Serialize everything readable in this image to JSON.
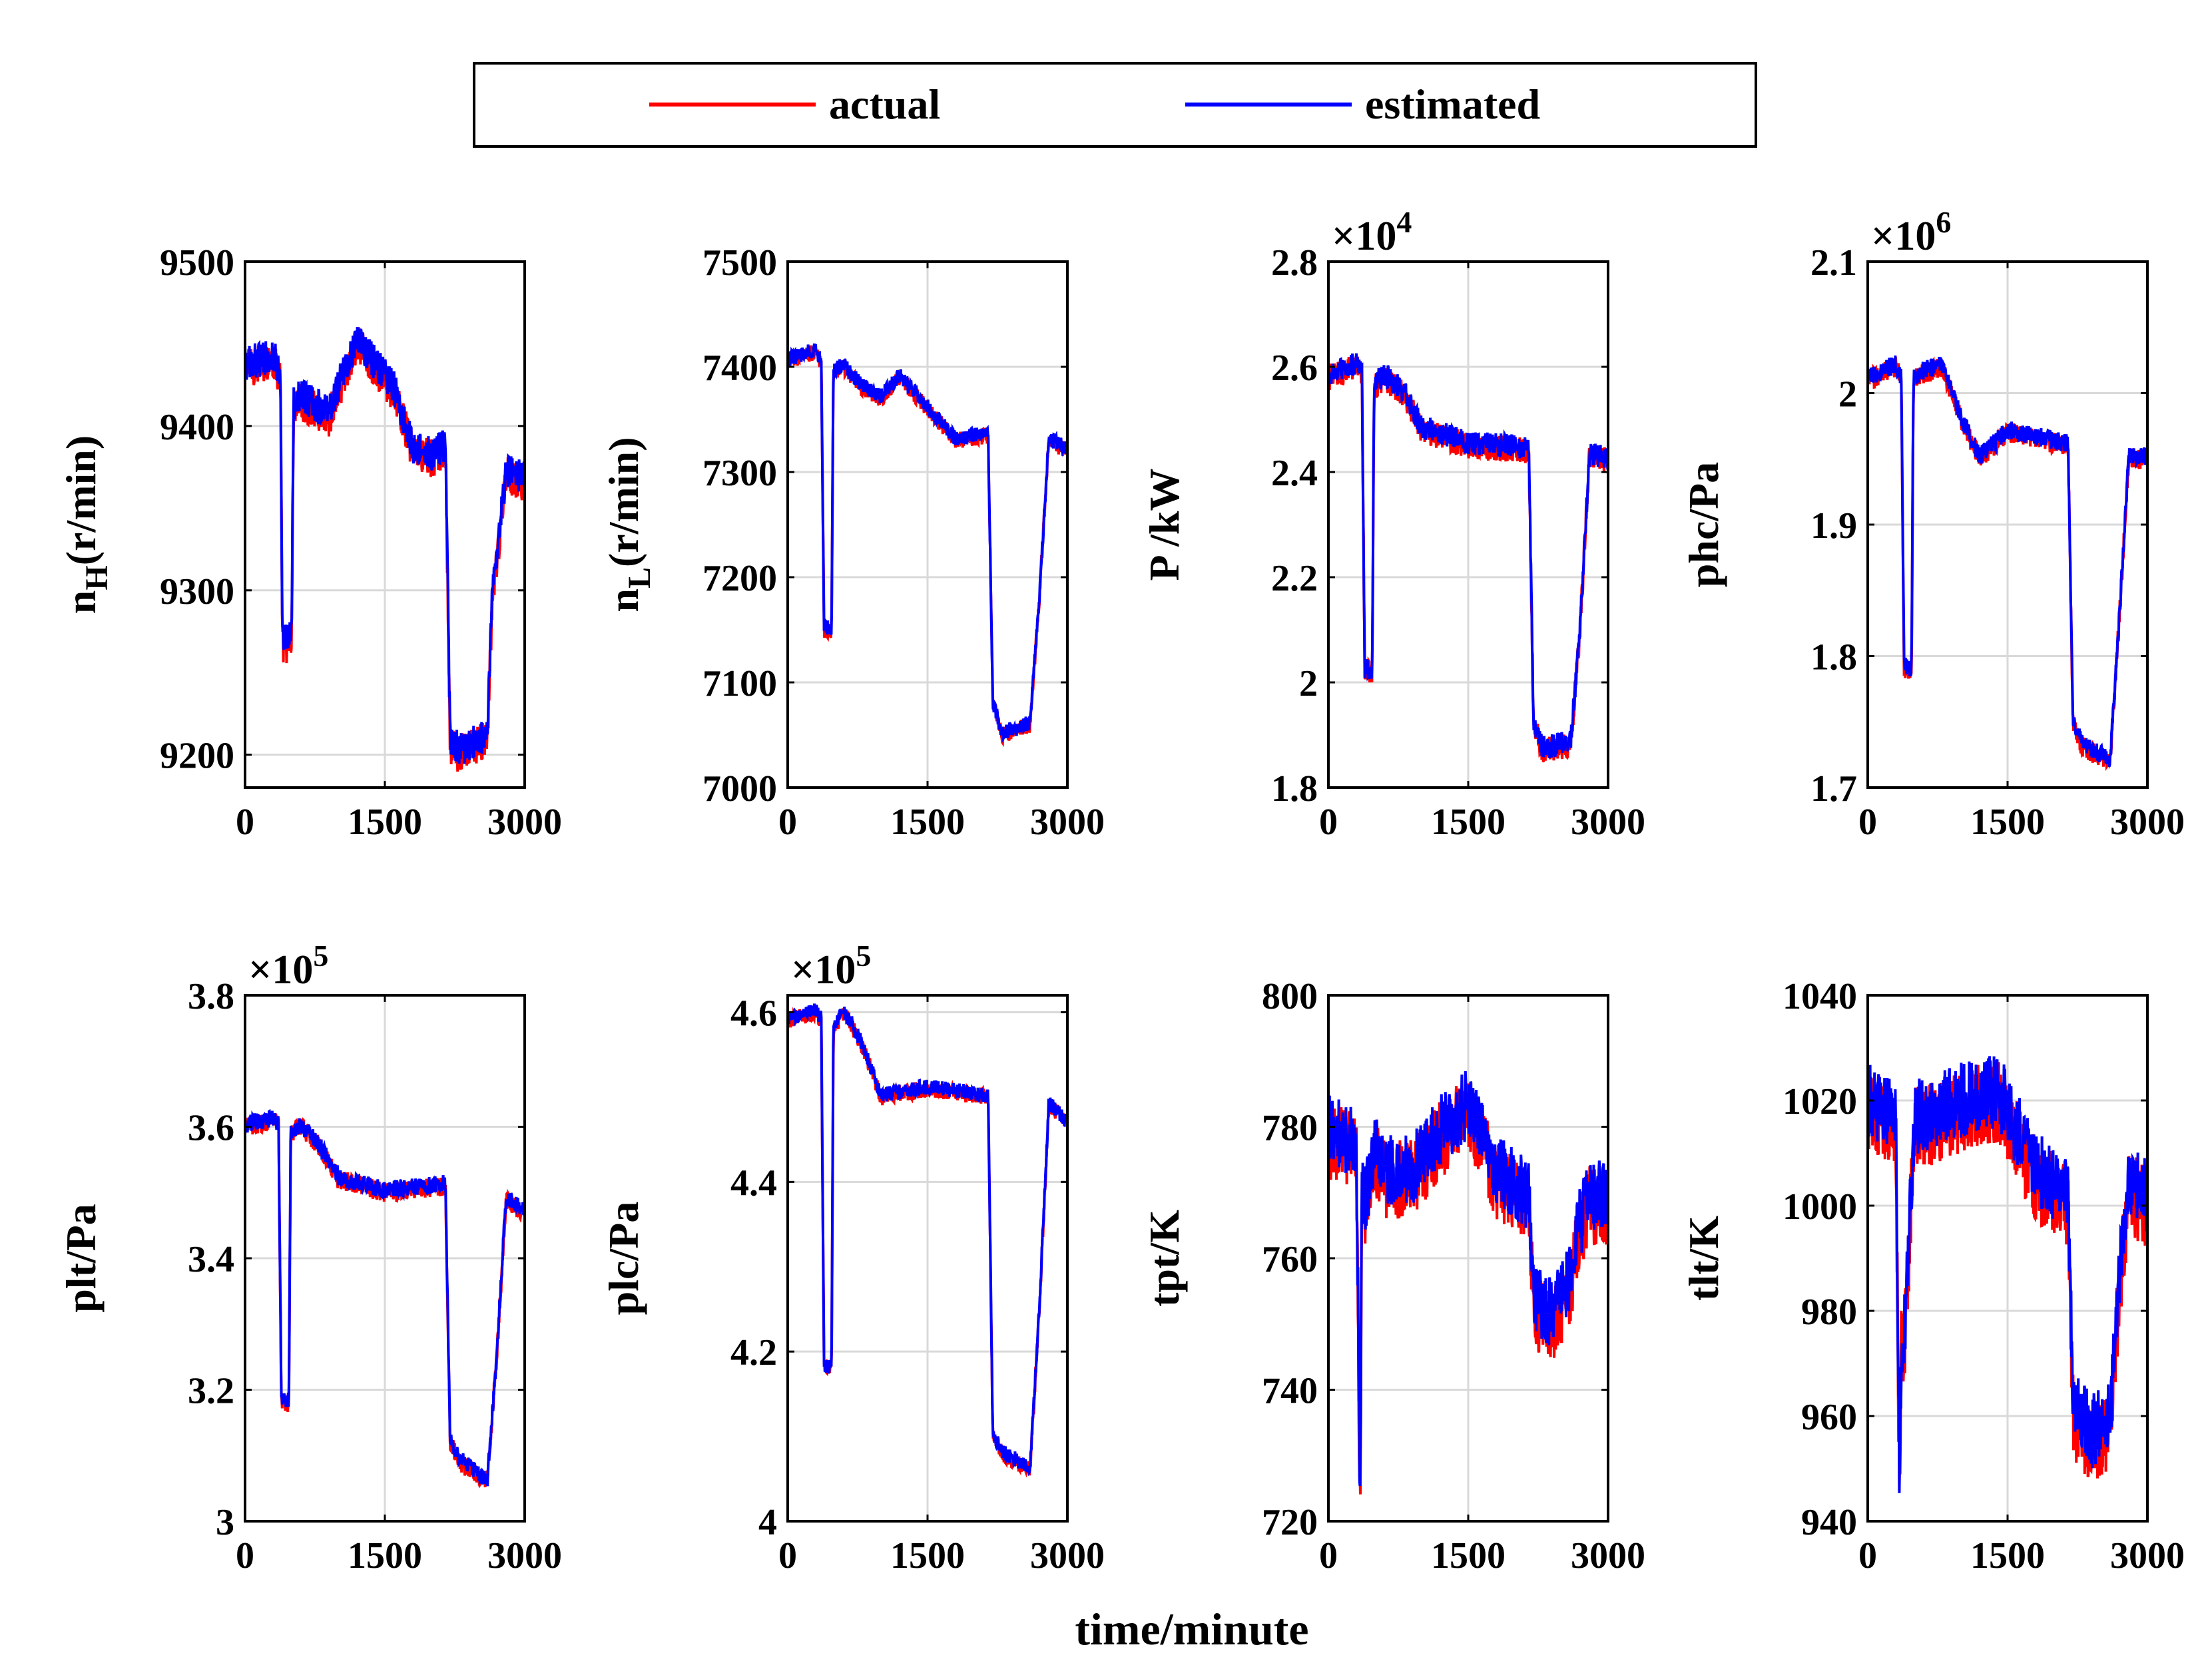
{
  "chart_data": {
    "type": "line",
    "xlabel": "time/minute",
    "legend": {
      "placement": "top-center",
      "entries": [
        {
          "label": "actual",
          "color": "#ff0000"
        },
        {
          "label": "estimated",
          "color": "#0000ff"
        }
      ]
    },
    "x_range": [
      0,
      3000
    ],
    "x_ticks": [
      "0",
      "1500",
      "3000"
    ],
    "grid": true,
    "panels": [
      {
        "id": "nH",
        "ylabel": "n",
        "ylabel_sub": "H",
        "ylabel_suffix": "(r/min)",
        "ylim": [
          9180,
          9500
        ],
        "yticks": [
          "9200",
          "9300",
          "9400",
          "9500"
        ],
        "exponent": "",
        "noise": 12,
        "x": [
          0,
          300,
          380,
          400,
          500,
          520,
          600,
          900,
          1200,
          1600,
          1800,
          2000,
          2150,
          2200,
          2300,
          2600,
          2650,
          2800,
          3000
        ],
        "y": [
          9435,
          9440,
          9430,
          9265,
          9270,
          9410,
          9415,
          9405,
          9450,
          9420,
          9385,
          9380,
          9385,
          9205,
          9200,
          9210,
          9290,
          9370,
          9365
        ]
      },
      {
        "id": "nL",
        "ylabel": "n",
        "ylabel_sub": "L",
        "ylabel_suffix": "(r/min)",
        "ylim": [
          7000,
          7500
        ],
        "yticks": [
          "7000",
          "7100",
          "7200",
          "7300",
          "7400",
          "7500"
        ],
        "exponent": "",
        "noise": 8,
        "x": [
          0,
          300,
          360,
          390,
          470,
          490,
          600,
          800,
          1000,
          1200,
          1600,
          1800,
          2150,
          2200,
          2300,
          2600,
          2700,
          2800,
          3000
        ],
        "y": [
          7405,
          7415,
          7400,
          7150,
          7150,
          7395,
          7400,
          7380,
          7370,
          7390,
          7350,
          7330,
          7335,
          7080,
          7050,
          7060,
          7180,
          7330,
          7320
        ]
      },
      {
        "id": "P",
        "ylabel": "P /kW",
        "ylabel_sub": "",
        "ylabel_suffix": "",
        "ylim": [
          1.8,
          2.8
        ],
        "yticks": [
          "1.8",
          "2",
          "2.2",
          "2.4",
          "2.6",
          "2.8"
        ],
        "exponent": "×10^4",
        "noise": 0.025,
        "x": [
          0,
          300,
          360,
          390,
          470,
          490,
          600,
          800,
          1000,
          1500,
          2150,
          2200,
          2300,
          2600,
          2700,
          2800,
          3000
        ],
        "y": [
          2.58,
          2.6,
          2.58,
          2.02,
          2.02,
          2.56,
          2.58,
          2.55,
          2.48,
          2.45,
          2.44,
          1.92,
          1.87,
          1.88,
          2.1,
          2.43,
          2.42
        ]
      },
      {
        "id": "phc",
        "ylabel": "phc/Pa",
        "ylabel_sub": "",
        "ylabel_suffix": "",
        "ylim": [
          1.7,
          2.1
        ],
        "yticks": [
          "1.7",
          "1.8",
          "1.9",
          "2",
          "2.1"
        ],
        "exponent": "×10^6",
        "noise": 0.008,
        "x": [
          0,
          300,
          360,
          390,
          470,
          490,
          600,
          800,
          1000,
          1200,
          1500,
          2150,
          2200,
          2300,
          2600,
          2700,
          2800,
          3000
        ],
        "y": [
          2.01,
          2.02,
          2.01,
          1.79,
          1.79,
          2.01,
          2.015,
          2.02,
          1.98,
          1.95,
          1.97,
          1.96,
          1.75,
          1.73,
          1.72,
          1.83,
          1.95,
          1.95
        ]
      },
      {
        "id": "plt",
        "ylabel": "plt/Pa",
        "ylabel_sub": "",
        "ylabel_suffix": "",
        "ylim": [
          3.0,
          3.8
        ],
        "yticks": [
          "3",
          "3.2",
          "3.4",
          "3.6",
          "3.8"
        ],
        "exponent": "×10^5",
        "noise": 0.015,
        "x": [
          0,
          300,
          360,
          390,
          470,
          490,
          600,
          800,
          1000,
          1500,
          2150,
          2200,
          2300,
          2600,
          2700,
          2800,
          3000
        ],
        "y": [
          3.6,
          3.61,
          3.6,
          3.18,
          3.18,
          3.59,
          3.6,
          3.57,
          3.52,
          3.5,
          3.51,
          3.12,
          3.09,
          3.06,
          3.25,
          3.49,
          3.47
        ]
      },
      {
        "id": "plc",
        "ylabel": "plc/Pa",
        "ylabel_sub": "",
        "ylabel_suffix": "",
        "ylim": [
          4.0,
          4.62
        ],
        "yticks": [
          "4",
          "4.2",
          "4.4",
          "4.6"
        ],
        "exponent": "×10^5",
        "noise": 0.01,
        "x": [
          0,
          300,
          360,
          390,
          470,
          490,
          600,
          800,
          1000,
          1500,
          2150,
          2200,
          2300,
          2600,
          2700,
          2800,
          3000
        ],
        "y": [
          4.59,
          4.6,
          4.59,
          4.18,
          4.18,
          4.58,
          4.6,
          4.56,
          4.5,
          4.51,
          4.5,
          4.1,
          4.08,
          4.06,
          4.25,
          4.49,
          4.47
        ]
      },
      {
        "id": "tpt",
        "ylabel": "tpt/K",
        "ylabel_sub": "",
        "ylabel_suffix": "",
        "ylim": [
          720,
          800
        ],
        "yticks": [
          "720",
          "740",
          "760",
          "780",
          "800"
        ],
        "exponent": "",
        "noise": 6,
        "x": [
          0,
          300,
          340,
          360,
          400,
          500,
          600,
          900,
          1200,
          1500,
          1800,
          2150,
          2200,
          2400,
          2600,
          2700,
          2800,
          3000
        ],
        "y": [
          778,
          776,
          722,
          768,
          768,
          775,
          772,
          772,
          778,
          782,
          772,
          768,
          752,
          750,
          756,
          764,
          768,
          768
        ]
      },
      {
        "id": "tlt",
        "ylabel": "tlt/K",
        "ylabel_sub": "",
        "ylabel_suffix": "",
        "ylim": [
          940,
          1040
        ],
        "yticks": [
          "940",
          "960",
          "980",
          "1000",
          "1020",
          "1040"
        ],
        "exponent": "",
        "noise": 8,
        "x": [
          0,
          300,
          340,
          360,
          400,
          500,
          600,
          1000,
          1400,
          1800,
          2150,
          2200,
          2400,
          2600,
          2700,
          2800,
          3000
        ],
        "y": [
          1018,
          1015,
          945,
          972,
          975,
          1015,
          1015,
          1018,
          1020,
          1005,
          1000,
          960,
          955,
          958,
          985,
          1002,
          1000
        ]
      }
    ]
  }
}
